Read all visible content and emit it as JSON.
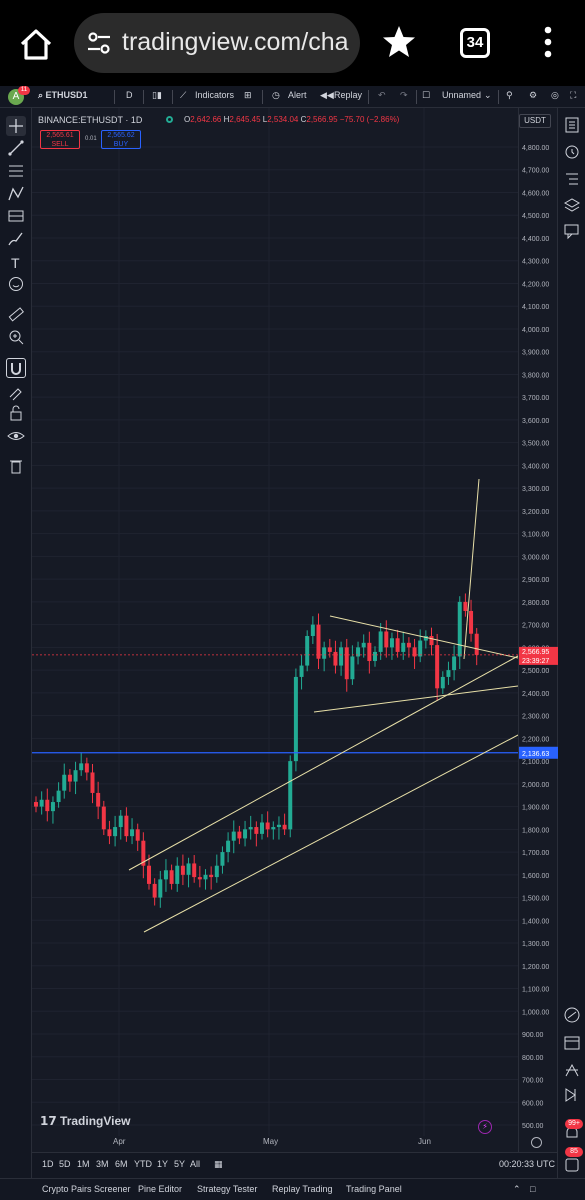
{
  "browser": {
    "url": "tradingview.com/cha",
    "tab_count": "34"
  },
  "toolbar": {
    "avatar_letter": "A",
    "notification_count": "11",
    "symbol": "ETHUSD1",
    "interval": "D",
    "indicators_label": "Indicators",
    "alert_label": "Alert",
    "replay_label": "Replay",
    "layout_name": "Unnamed"
  },
  "legend": {
    "symbol_line": "BINANCE:ETHUSDT · 1D",
    "open_label": "O",
    "open": "2,642.66",
    "high_label": "H",
    "high": "2,645.45",
    "low_label": "L",
    "low": "2,534.04",
    "close_label": "C",
    "close": "2,566.95",
    "change": "−75.70 (−2.86%)",
    "sell_price": "2,565.61",
    "sell_label": "SELL",
    "spread": "0.01",
    "buy_price": "2,565.62",
    "buy_label": "BUY"
  },
  "price_scale": {
    "currency": "USDT",
    "current_price": "2,566.95",
    "countdown": "23:39:27",
    "level_price": "2,136.63"
  },
  "time_axis": [
    "Apr",
    "May",
    "Jun"
  ],
  "watermark": "TradingView",
  "ranges": [
    "1D",
    "5D",
    "1M",
    "3M",
    "6M",
    "YTD",
    "1Y",
    "5Y",
    "All"
  ],
  "clock": "00:20:33 UTC",
  "panels": [
    "Crypto Pairs Screener",
    "Pine Editor",
    "Strategy Tester",
    "Replay Trading",
    "Trading Panel"
  ],
  "right_badges": {
    "top": "99+",
    "bottom": "85"
  },
  "colors": {
    "up": "#22ab94",
    "down": "#f23645",
    "background": "#161a25",
    "level_line": "#2962ff",
    "trend_lines": "#e8e0a8"
  },
  "chart_data": {
    "type": "candlestick",
    "symbol": "BINANCE:ETHUSDT",
    "interval": "1D",
    "y_ticks": [
      500,
      600,
      700,
      800,
      900,
      1000,
      1100,
      1200,
      1300,
      1400,
      1500,
      1600,
      1700,
      1800,
      1900,
      2000,
      2100,
      2200,
      2300,
      2400,
      2500,
      2600,
      2700,
      2800,
      2900,
      3000,
      3100,
      3200,
      3300,
      3400,
      3500,
      3600,
      3700,
      3800,
      3900,
      4000,
      4100,
      4200,
      4300,
      4400,
      4500,
      4600,
      4700,
      4800
    ],
    "ylim": [
      470,
      4870
    ],
    "x_labels": [
      "Apr",
      "May",
      "Jun"
    ],
    "horizontal_level": 2136.63,
    "closes": [
      1900,
      1930,
      1880,
      1920,
      1970,
      2040,
      2010,
      2060,
      2090,
      2050,
      1960,
      1900,
      1800,
      1770,
      1810,
      1860,
      1770,
      1800,
      1750,
      1640,
      1560,
      1500,
      1580,
      1620,
      1560,
      1640,
      1600,
      1650,
      1590,
      1580,
      1600,
      1590,
      1640,
      1700,
      1750,
      1790,
      1760,
      1800,
      1810,
      1780,
      1830,
      1800,
      1810,
      1820,
      1800,
      2100,
      2470,
      2520,
      2650,
      2700,
      2550,
      2600,
      2580,
      2520,
      2600,
      2460,
      2560,
      2600,
      2620,
      2540,
      2580,
      2670,
      2600,
      2640,
      2580,
      2620,
      2600,
      2560,
      2630,
      2650,
      2610,
      2420,
      2470,
      2500,
      2560,
      2800,
      2760,
      2660,
      2566.95
    ]
  }
}
